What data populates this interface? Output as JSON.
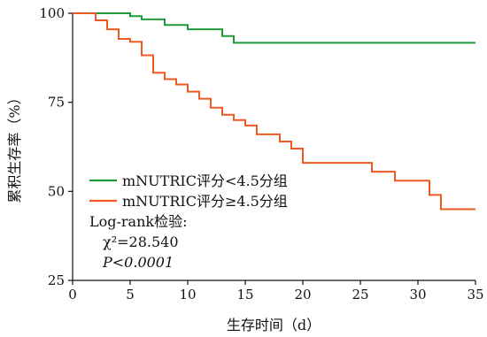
{
  "chart_data": {
    "type": "line",
    "chart_kind": "kaplan-meier step",
    "xlabel": "生存时间（d）",
    "ylabel": "累积生存率（%）",
    "xlim": [
      0,
      35
    ],
    "ylim": [
      25,
      100
    ],
    "xticks": [
      "0",
      "5",
      "10",
      "15",
      "20",
      "25",
      "30",
      "35"
    ],
    "yticks": [
      "25",
      "50",
      "75",
      "100"
    ],
    "grid": false,
    "legend_position": "bottom-left",
    "series": [
      {
        "name": "mNUTRIC评分<4.5分组",
        "color": "#1f9a3a",
        "x": [
          0,
          5,
          6,
          8,
          10,
          13,
          14,
          35
        ],
        "y": [
          100,
          99.2,
          98.3,
          96.7,
          95.5,
          93.6,
          91.7,
          91.7
        ]
      },
      {
        "name": "mNUTRIC评分≥4.5分组",
        "color": "#f05a22",
        "x": [
          0,
          2,
          3,
          4,
          5,
          6,
          7,
          8,
          9,
          10,
          11,
          12,
          13,
          14,
          15,
          16,
          18,
          19,
          20,
          26,
          28,
          31,
          32,
          35
        ],
        "y": [
          100,
          98,
          95.5,
          92.8,
          92,
          88.2,
          83.3,
          81.5,
          80,
          78,
          76,
          73.5,
          71.5,
          70,
          68.5,
          66,
          64,
          62,
          58,
          55.5,
          53,
          49,
          45,
          45
        ]
      }
    ],
    "annotations": [
      "Log-rank检验:",
      "χ²=28.540",
      "P<0.0001"
    ]
  }
}
